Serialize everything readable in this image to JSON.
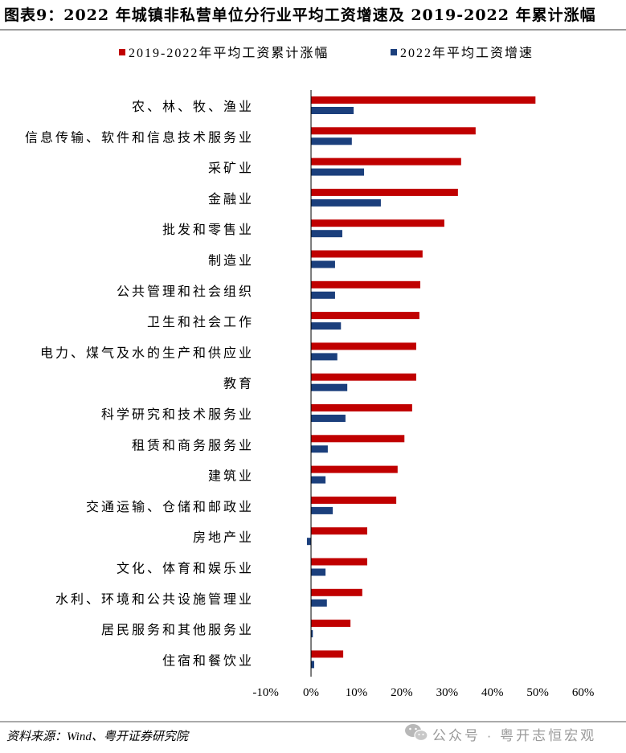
{
  "header": {
    "title": "图表9：2022 年城镇非私营单位分行业平均工资增速及 2019-2022 年累计涨幅"
  },
  "colors": {
    "cumulative": "#C00000",
    "growth": "#1B3F7C",
    "watermark": "#9a9a9a"
  },
  "chart_data": {
    "type": "bar",
    "orientation": "horizontal",
    "categories": [
      "农、林、牧、渔业",
      "信息传输、软件和信息技术服务业",
      "采矿业",
      "金融业",
      "批发和零售业",
      "制造业",
      "公共管理和社会组织",
      "卫生和社会工作",
      "电力、煤气及水的生产和供应业",
      "教育",
      "科学研究和技术服务业",
      "租赁和商务服务业",
      "建筑业",
      "交通运输、仓储和邮政业",
      "房地产业",
      "文化、体育和娱乐业",
      "水利、环境和公共设施管理业",
      "居民服务和其他服务业",
      "住宿和餐饮业"
    ],
    "series": [
      {
        "name": "2019-2022年平均工资累计涨幅",
        "values": [
          49.5,
          36.3,
          33.1,
          32.4,
          29.4,
          24.6,
          24.1,
          23.9,
          23.2,
          23.2,
          22.3,
          20.6,
          19.1,
          18.8,
          12.4,
          12.4,
          11.3,
          8.7,
          7.1
        ]
      },
      {
        "name": "2022年平均工资增速",
        "values": [
          9.4,
          9.0,
          11.7,
          15.4,
          6.9,
          5.3,
          5.3,
          6.6,
          5.8,
          8.0,
          7.6,
          3.7,
          3.2,
          4.8,
          -0.9,
          3.2,
          3.5,
          0.4,
          0.7
        ]
      }
    ],
    "xlim": [
      -10,
      60
    ],
    "x_ticks": [
      -10,
      0,
      10,
      20,
      30,
      40,
      50,
      60
    ],
    "x_tick_labels": [
      "-10%",
      "0%",
      "10%",
      "20%",
      "30%",
      "40%",
      "50%",
      "60%"
    ],
    "legend": "top",
    "grid": false
  },
  "footer": {
    "source": "资料来源：Wind、粤开证券研究院",
    "watermark": "公众号 · 粤开志恒宏观"
  }
}
